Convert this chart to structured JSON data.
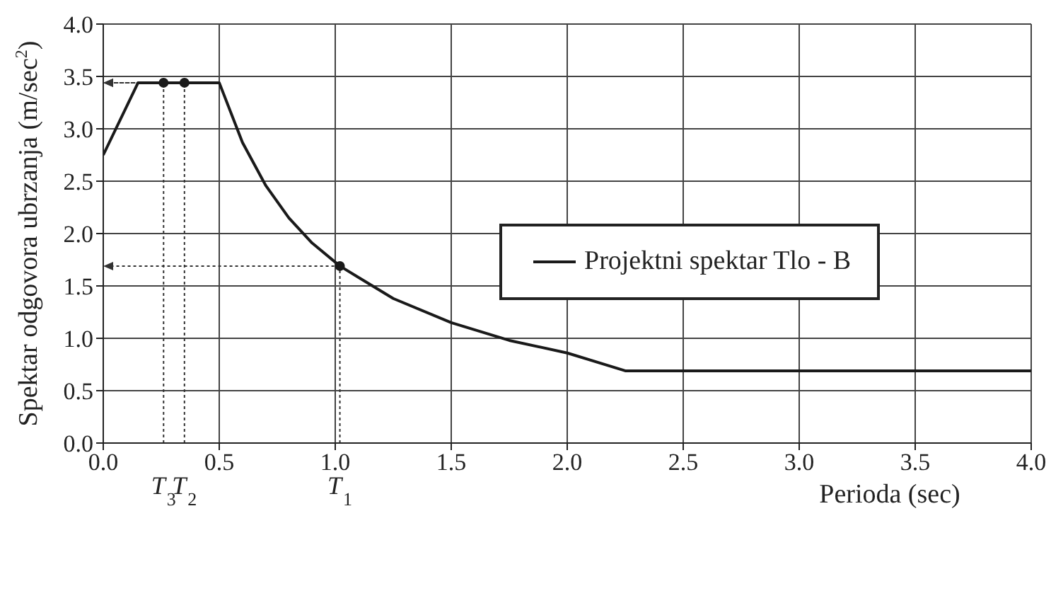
{
  "chart_data": {
    "type": "line",
    "xlabel": "Perioda (sec)",
    "ylabel": "Spektar odgovora ubrzanja (m/sec$^{2}$)",
    "xlim": [
      0,
      4
    ],
    "ylim": [
      0,
      4
    ],
    "xticks": [
      {
        "value": 0,
        "label": "0.0"
      },
      {
        "value": 0.5,
        "label": "0.5"
      },
      {
        "value": 1,
        "label": "1.0"
      },
      {
        "value": 1.5,
        "label": "1.5"
      },
      {
        "value": 2,
        "label": "2.0"
      },
      {
        "value": 2.5,
        "label": "2.5"
      },
      {
        "value": 3,
        "label": "3.0"
      },
      {
        "value": 3.5,
        "label": "3.5"
      },
      {
        "value": 4,
        "label": "4.0"
      }
    ],
    "yticks": [
      {
        "value": 0,
        "label": "0.0"
      },
      {
        "value": 0.5,
        "label": "0.5"
      },
      {
        "value": 1,
        "label": "1.0"
      },
      {
        "value": 1.5,
        "label": "1.5"
      },
      {
        "value": 2,
        "label": "2.0"
      },
      {
        "value": 2.5,
        "label": "2.5"
      },
      {
        "value": 3,
        "label": "3.0"
      },
      {
        "value": 3.5,
        "label": "3.5"
      },
      {
        "value": 4,
        "label": "4.0"
      }
    ],
    "grid": true,
    "legend": "center",
    "marker": "none",
    "line_style": "solid",
    "series": [
      {
        "name": "Projektni spektar Tlo - B",
        "color": "#1a1a1a",
        "x": [
          0,
          0.15,
          0.5,
          0.6,
          0.7,
          0.8,
          0.9,
          1.02,
          1.25,
          1.5,
          1.75,
          2.0,
          2.25,
          4.0
        ],
        "values": [
          2.75,
          3.44,
          3.44,
          2.87,
          2.46,
          2.15,
          1.91,
          1.69,
          1.38,
          1.15,
          0.98,
          0.86,
          0.69,
          0.69
        ]
      },
      {
        "type": "scatter",
        "color": "#1a1a1a",
        "marker": "circle",
        "x": [
          0.26,
          0.35,
          1.02
        ],
        "values": [
          3.44,
          3.44,
          1.69
        ]
      }
    ],
    "annotations": [
      {
        "text": "T$_{3}$",
        "x": 0.26,
        "y": 3.44
      },
      {
        "text": "T$_{2}$",
        "x": 0.35,
        "y": 3.44
      },
      {
        "text": "T$_{1}$",
        "x": 1.02,
        "y": 1.69
      }
    ]
  }
}
